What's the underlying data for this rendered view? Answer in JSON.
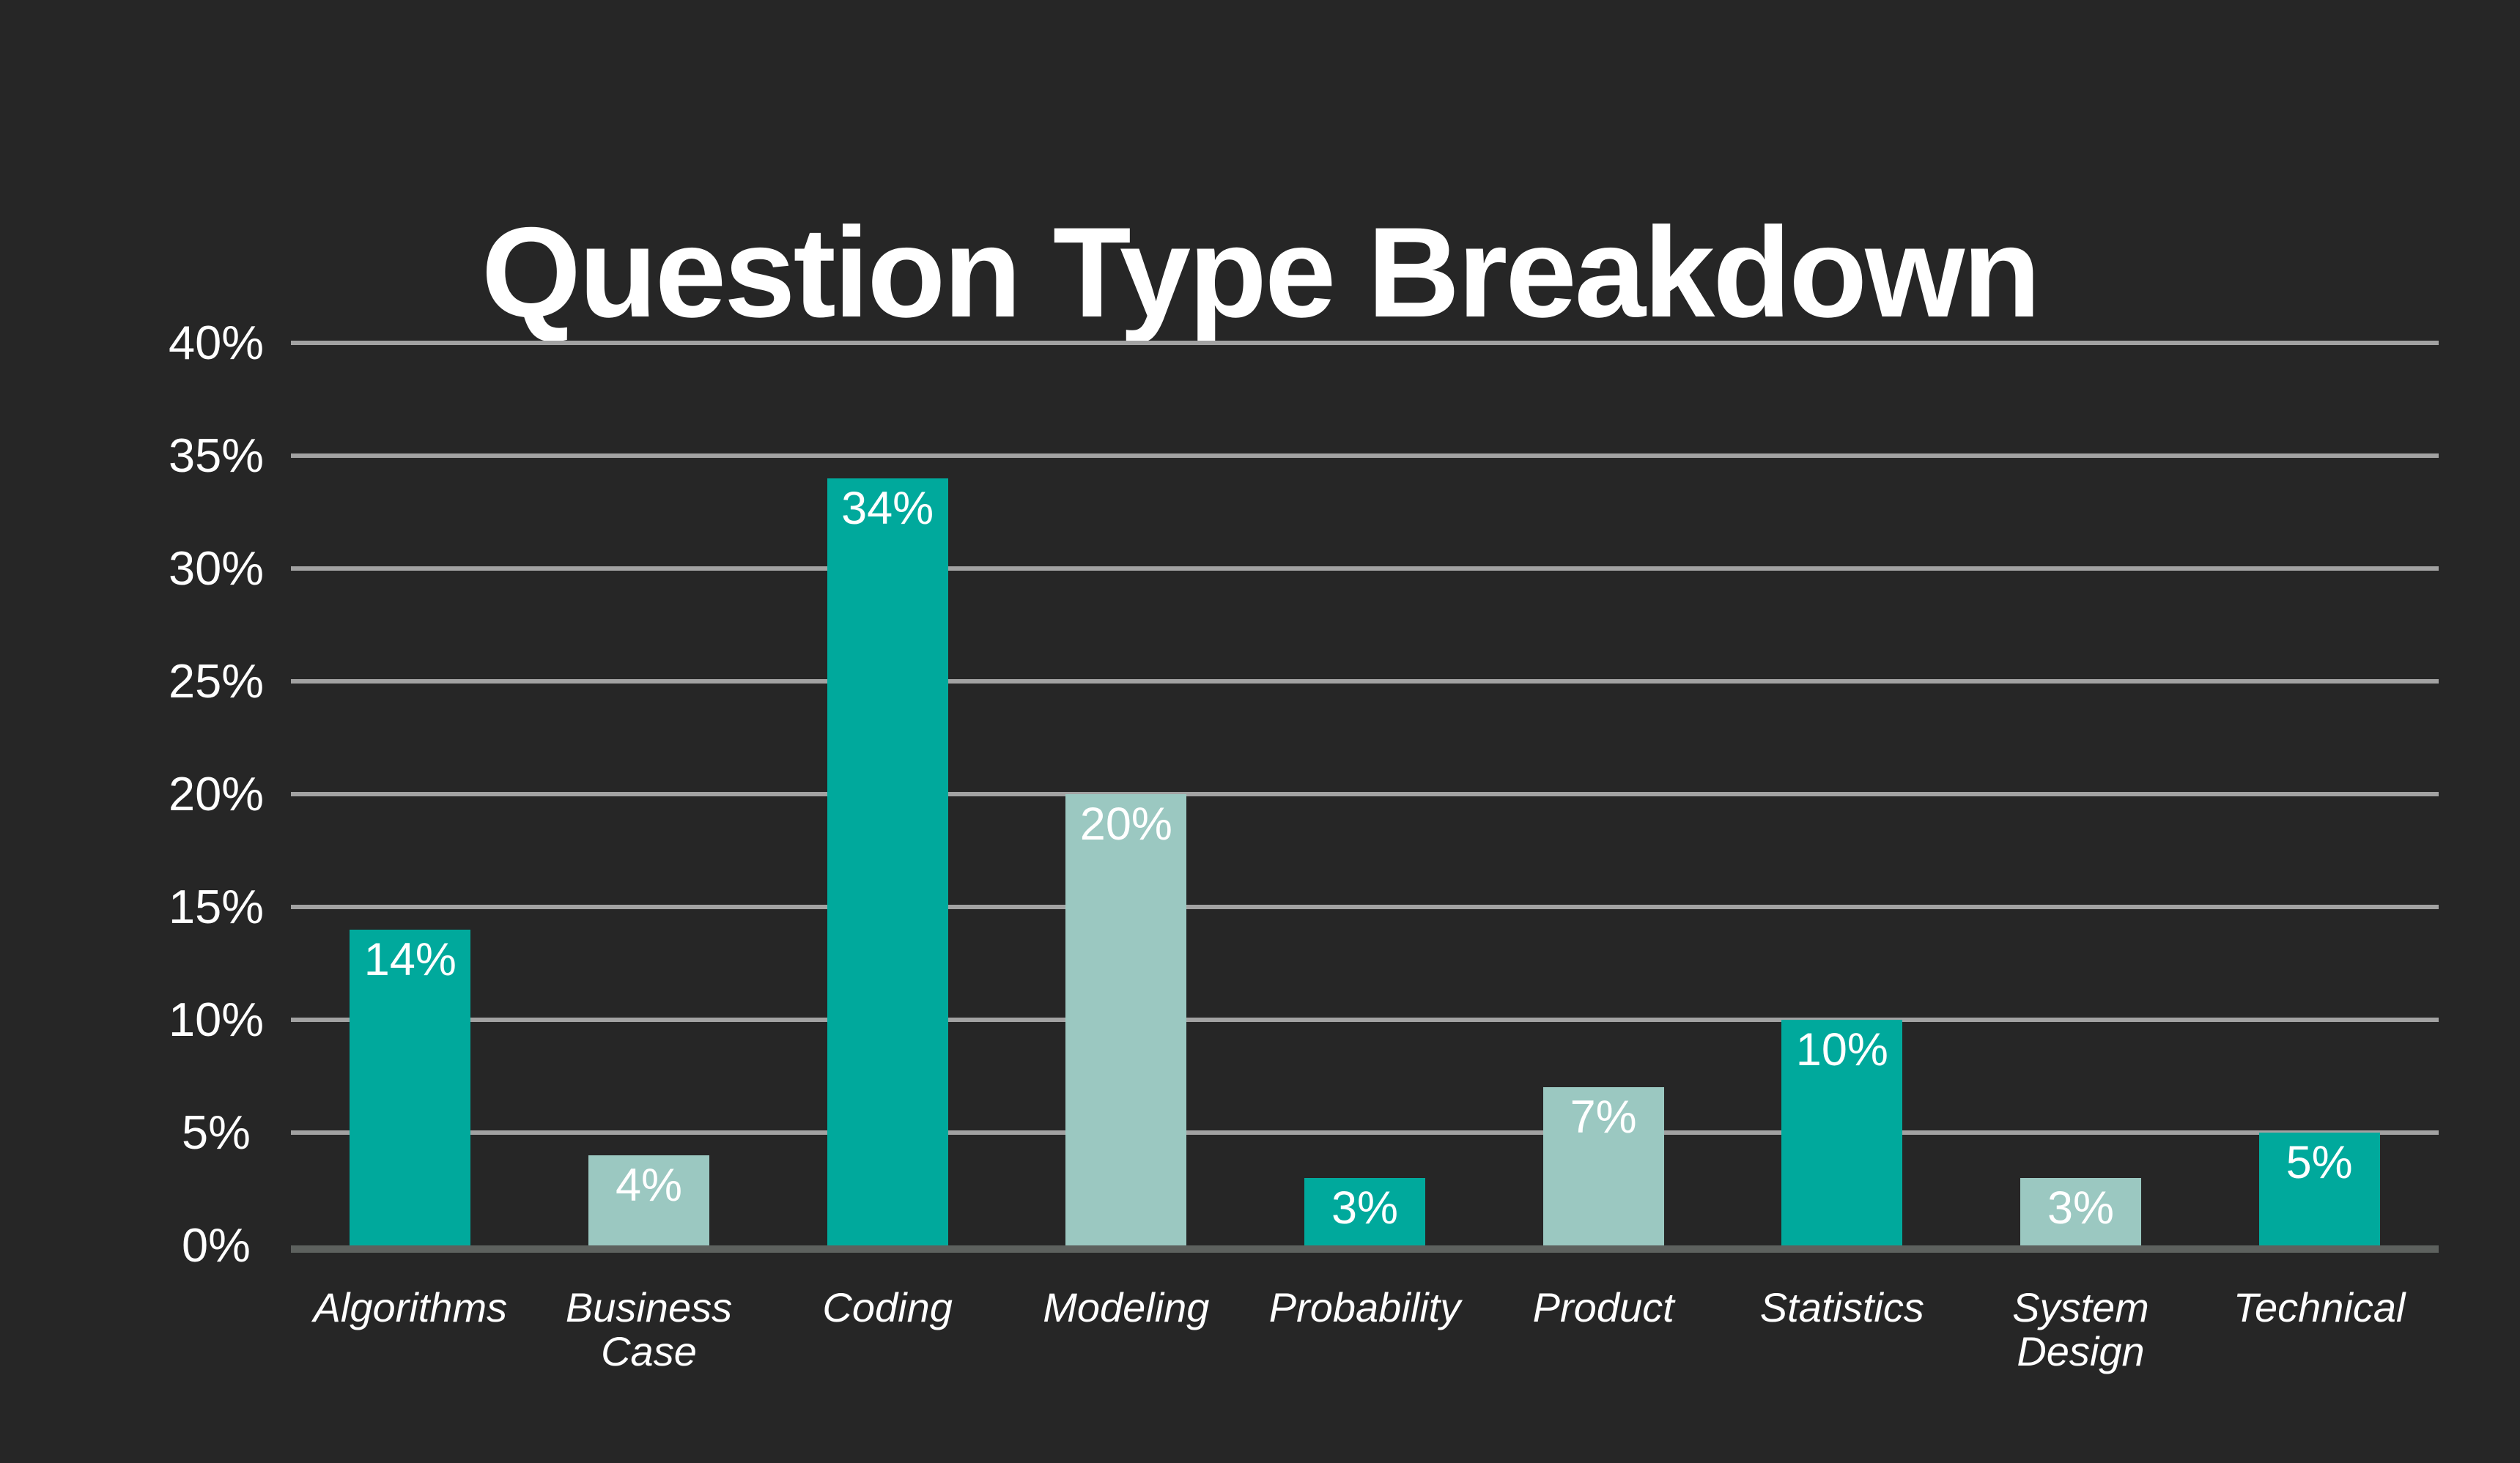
{
  "title": "Question Type Breakdown",
  "colors": {
    "background": "#262626",
    "bar_teal": "#00a99c",
    "bar_light_teal": "#9bc8c1",
    "gridline": "#a2a2a2",
    "baseline": "#5d615e",
    "text": "#ffffff"
  },
  "chart_data": {
    "type": "bar",
    "title": "Question Type Breakdown",
    "categories": [
      "Algorithms",
      "Business\nCase",
      "Coding",
      "Modeling",
      "Probability",
      "Product",
      "Statistics",
      "System\nDesign",
      "Technical"
    ],
    "values": [
      14,
      4,
      34,
      20,
      3,
      7,
      10,
      3,
      5
    ],
    "bar_value_labels": [
      "14%",
      "4%",
      "34%",
      "20%",
      "3%",
      "7%",
      "10%",
      "3%",
      "5%"
    ],
    "bar_colors": [
      "#00a99c",
      "#9bc8c1",
      "#00a99c",
      "#9bc8c1",
      "#00a99c",
      "#9bc8c1",
      "#00a99c",
      "#9bc8c1",
      "#00a99c"
    ],
    "y_ticks": [
      "40%",
      "35%",
      "30%",
      "25%",
      "20%",
      "15%",
      "10%",
      "5%",
      "0%"
    ],
    "y_tick_values": [
      40,
      35,
      30,
      25,
      20,
      15,
      10,
      5,
      0
    ],
    "ylim": [
      0,
      40
    ],
    "xlabel": "",
    "ylabel": "",
    "grid": true,
    "legend": false,
    "value_labels_position": "inside-top",
    "background": "dark"
  }
}
